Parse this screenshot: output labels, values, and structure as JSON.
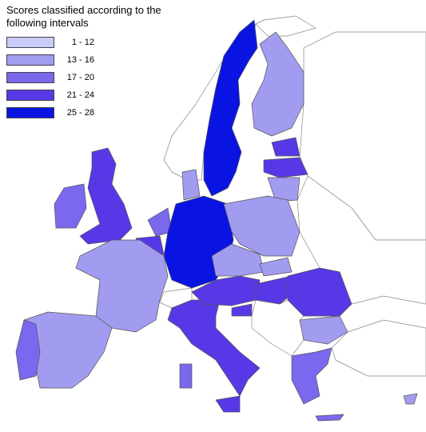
{
  "title": "Scores classified according to the following intervals",
  "legend": [
    {
      "label": "1 - 12",
      "color": "#cbcbfa"
    },
    {
      "label": "13 - 16",
      "color": "#a29cf0"
    },
    {
      "label": "17 - 20",
      "color": "#7a68ee"
    },
    {
      "label": "21 - 24",
      "color": "#5838e6"
    },
    {
      "label": "25 - 28",
      "color": "#0a14e2"
    }
  ]
}
